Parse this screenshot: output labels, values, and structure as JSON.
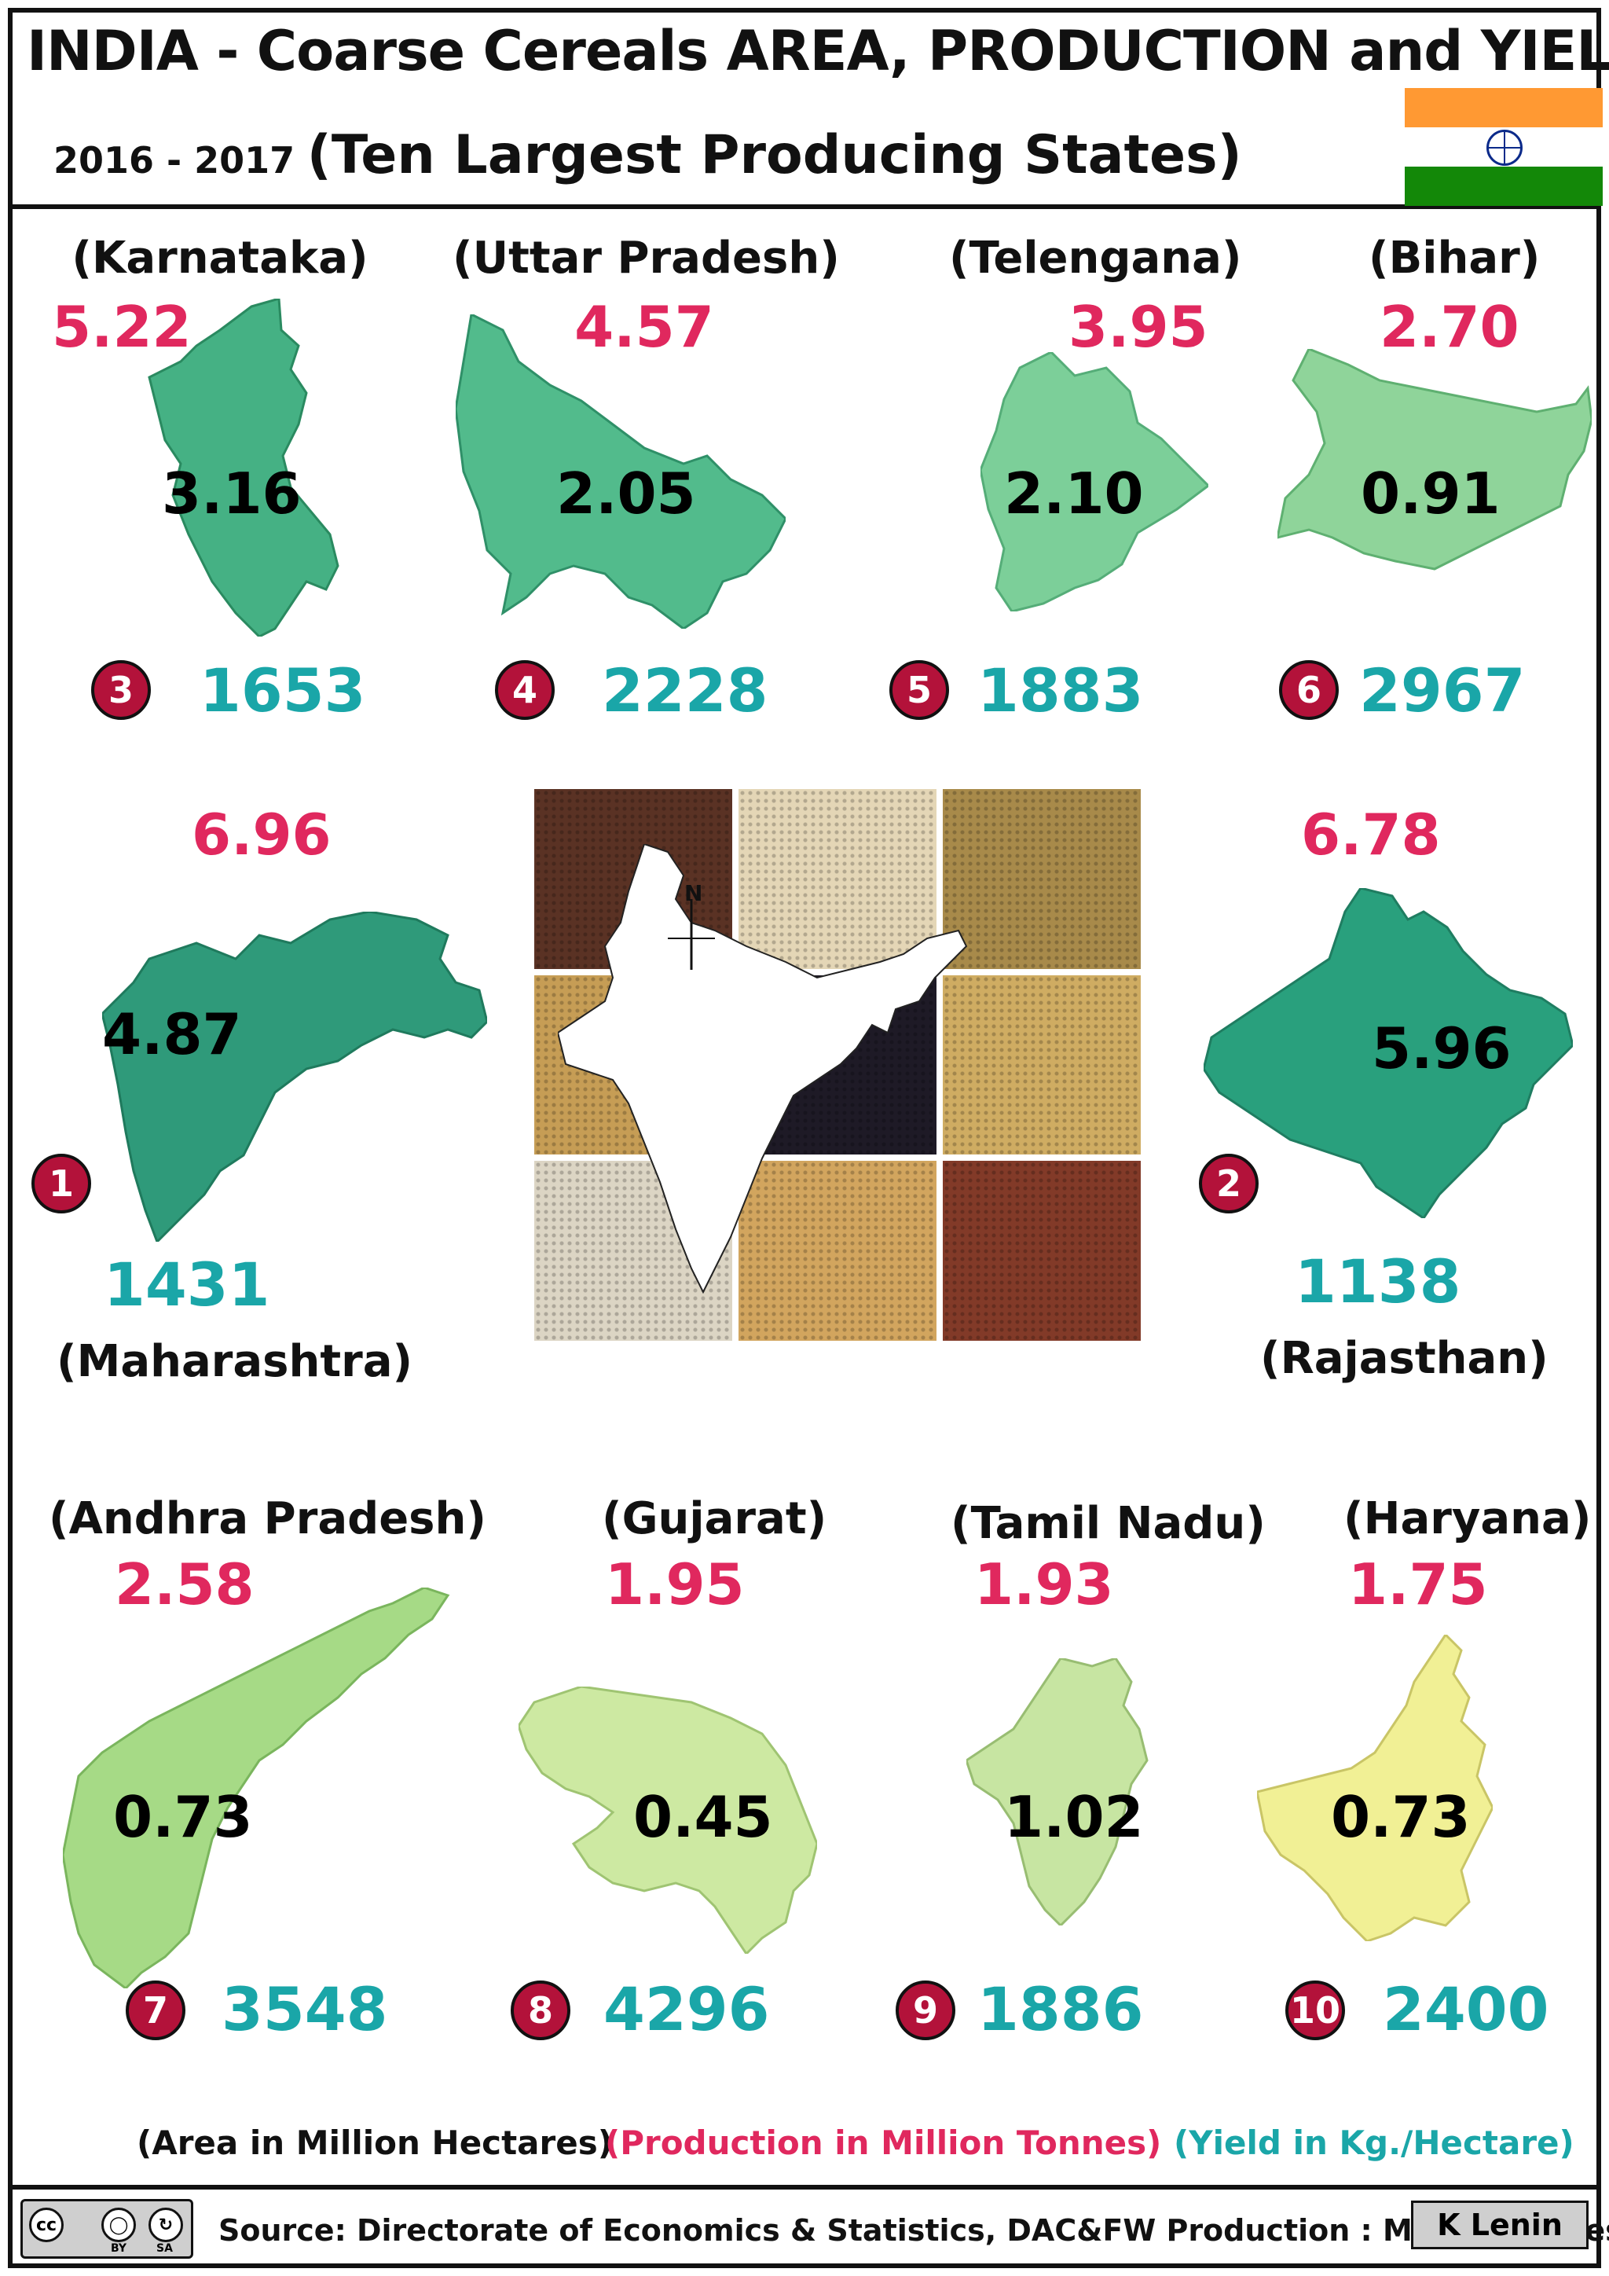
{
  "header": {
    "title": "INDIA - Coarse Cereals AREA, PRODUCTION and  YIELD",
    "years": "2016 - 2017",
    "subtitle": "(Ten Largest Producing States)"
  },
  "colors": {
    "production": "#e0285e",
    "yield": "#1aa6a8",
    "rank_badge": "#b3123a",
    "flag_saffron": "#ff9933",
    "flag_green": "#138808"
  },
  "states": [
    {
      "name": "(Karnataka)",
      "production": "5.22",
      "area": "3.16",
      "rank": "3",
      "yield": "1653"
    },
    {
      "name": "(Uttar  Pradesh)",
      "production": "4.57",
      "area": "2.05",
      "rank": "4",
      "yield": "2228"
    },
    {
      "name": "(Telengana)",
      "production": "3.95",
      "area": "2.10",
      "rank": "5",
      "yield": "1883"
    },
    {
      "name": "(Bihar)",
      "production": "2.70",
      "area": "0.91",
      "rank": "6",
      "yield": "2967"
    },
    {
      "name": "(Maharashtra)",
      "production": "6.96",
      "area": "4.87",
      "rank": "1",
      "yield": "1431"
    },
    {
      "name": "(Rajasthan)",
      "production": "6.78",
      "area": "5.96",
      "rank": "2",
      "yield": "1138"
    },
    {
      "name": "(Andhra Pradesh)",
      "production": "2.58",
      "area": "0.73",
      "rank": "7",
      "yield": "3548"
    },
    {
      "name": "(Gujarat)",
      "production": "1.95",
      "area": "0.45",
      "rank": "8",
      "yield": "4296"
    },
    {
      "name": "(Tamil Nadu)",
      "production": "1.93",
      "area": "1.02",
      "rank": "9",
      "yield": "1886"
    },
    {
      "name": "(Haryana)",
      "production": "1.75",
      "area": "0.73",
      "rank": "10",
      "yield": "2400"
    }
  ],
  "map_compass": "N",
  "legend": {
    "area": "(Area in Million Hectares)",
    "production": "(Production in Million Tonnes)",
    "yield": "(Yield in Kg./Hectare)"
  },
  "footer": {
    "license_cc": "cc",
    "license_by": "BY",
    "license_sa": "SA",
    "source": "Source: Directorate of Economics & Statistics, DAC&FW  Production : Million Tonnes",
    "author": "K Lenin"
  }
}
